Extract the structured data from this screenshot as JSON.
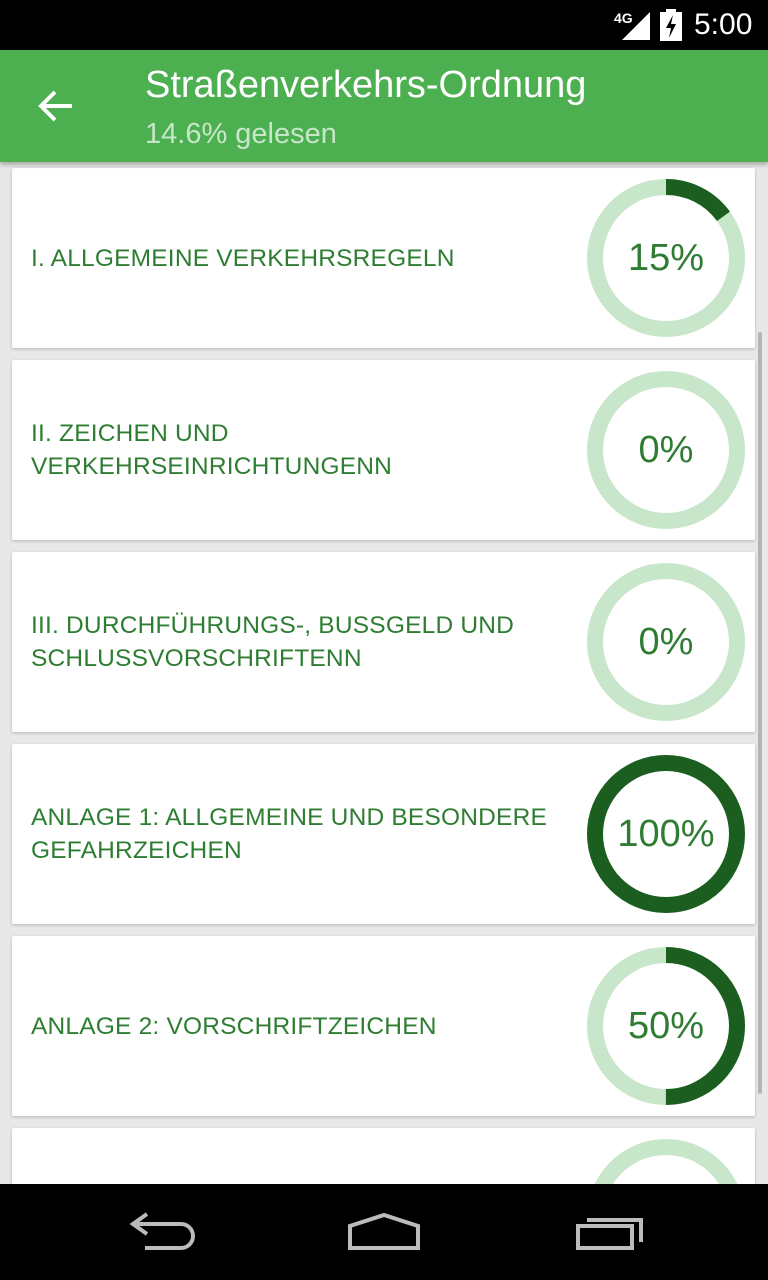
{
  "status_bar": {
    "network": "4G",
    "time": "5:00"
  },
  "app_bar": {
    "title": "Straßenverkehrs-Ordnung",
    "subtitle": "14.6% gelesen",
    "back_icon": "arrow-back-icon"
  },
  "colors": {
    "primary": "#4caf50",
    "accent_dark": "#1b5e20",
    "ring_track": "#c8e6c9",
    "text": "#2e7d32"
  },
  "sections": [
    {
      "label": "I. ALLGEMEINE VERKEHRSREGELN",
      "percent_text": "15%",
      "progress": 0.15
    },
    {
      "label": "II. ZEICHEN UND VERKEHRSEINRICHTUNGENN",
      "percent_text": "0%",
      "progress": 0
    },
    {
      "label": "III. DURCHFÜHRUNGS-, BUSSGELD UND SCHLUSSVORSCHRIFTENN",
      "percent_text": "0%",
      "progress": 0
    },
    {
      "label": "ANLAGE 1: ALLGEMEINE UND BESONDERE GEFAHRZEICHEN",
      "percent_text": "100%",
      "progress": 1.0
    },
    {
      "label": "ANLAGE 2: VORSCHRIFTZEICHEN",
      "percent_text": "50%",
      "progress": 0.5
    },
    {
      "label": "",
      "percent_text": "",
      "progress": 0
    }
  ],
  "nav_bar": {
    "back_icon": "nav-back-icon",
    "home_icon": "nav-home-icon",
    "recents_icon": "nav-recents-icon"
  }
}
